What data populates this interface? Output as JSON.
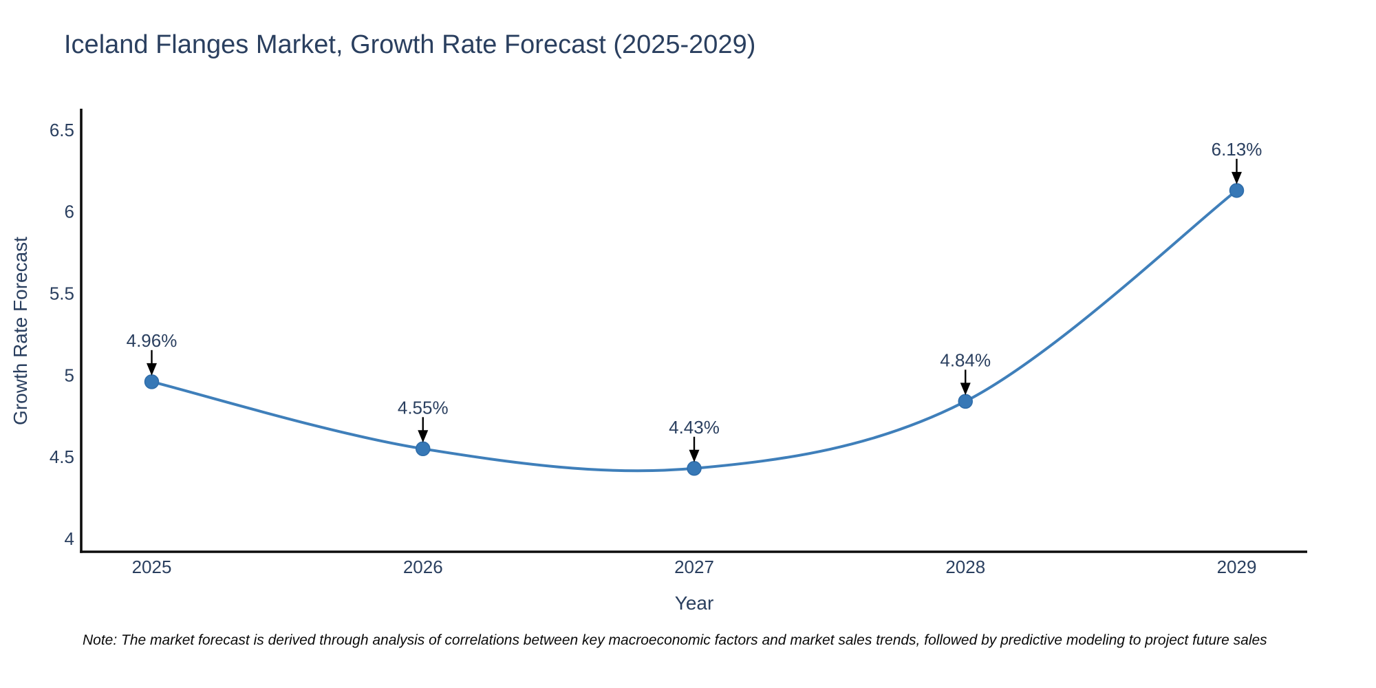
{
  "chart_data": {
    "type": "line",
    "title": "Iceland Flanges Market, Growth Rate Forecast (2025-2029)",
    "xlabel": "Year",
    "ylabel": "Growth Rate Forecast",
    "x": [
      2025,
      2026,
      2027,
      2028,
      2029
    ],
    "values": [
      4.96,
      4.55,
      4.43,
      4.84,
      6.13
    ],
    "point_labels": [
      "4.96%",
      "4.55%",
      "4.43%",
      "4.84%",
      "6.13%"
    ],
    "xtick_labels": [
      "2025",
      "2026",
      "2027",
      "2028",
      "2029"
    ],
    "yticks": [
      4,
      4.5,
      5,
      5.5,
      6,
      6.5
    ],
    "ytick_labels": [
      "4",
      "4.5",
      "5",
      "5.5",
      "6",
      "6.5"
    ],
    "xlim": [
      2024.74,
      2029.26
    ],
    "ylim": [
      3.92,
      6.63
    ],
    "grid": false,
    "legend_position": "none",
    "line_color": "#3f7fba",
    "marker_color": "#3778b6",
    "marker_edge_color": "#2e6ca9",
    "axis_color": "#0d0d0d",
    "text_color": "#2a3f5f",
    "arrow_color": "#000000"
  },
  "note": "Note: The market forecast is derived through analysis of correlations between key macroeconomic factors and market sales trends, followed by predictive modeling to project future sales"
}
